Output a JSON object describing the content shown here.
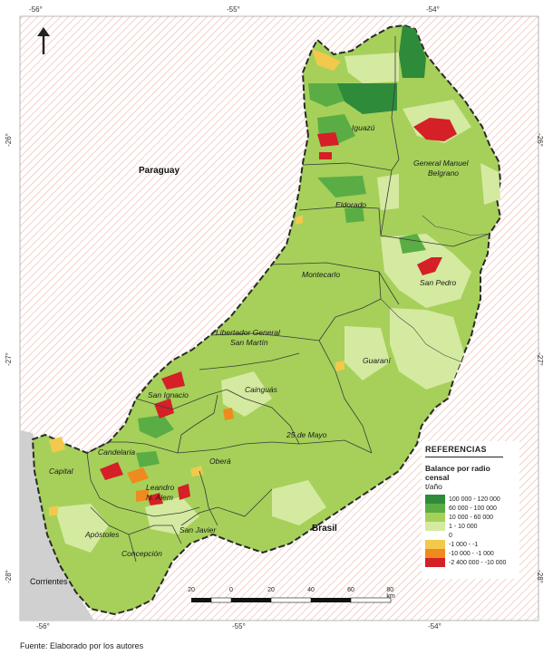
{
  "coords": {
    "top": [
      "-56°",
      "-55°",
      "-54°"
    ],
    "bottom": [
      "-56°",
      "-55°",
      "-54°"
    ],
    "left": [
      "-26°",
      "-27°",
      "-28°"
    ],
    "right": [
      "-26°",
      "-27°",
      "-28°"
    ]
  },
  "countries": {
    "paraguay": "Paraguay",
    "brasil": "Brasil",
    "corrientes": "Corrientes"
  },
  "departments": [
    "Iguazú",
    "General Manuel Belgrano",
    "Eldorado",
    "San Pedro",
    "Montecarlo",
    "Libertador General San Martín",
    "Guaraní",
    "Cainguás",
    "San Ignacio",
    "25 de Mayo",
    "Candelaria",
    "Capital",
    "Oberá",
    "Leandro N. Alem",
    "San Javier",
    "Apóstoles",
    "Concepción"
  ],
  "dept_labels": {
    "iguazu": "Iguazú",
    "belgrano_1": "General Manuel",
    "belgrano_2": "Belgrano",
    "eldorado": "Eldorado",
    "san_pedro": "San Pedro",
    "montecarlo": "Montecarlo",
    "lgsm_1": "Libertador General",
    "lgsm_2": "San Martín",
    "guarani": "Guaraní",
    "cainguas": "Cainguás",
    "san_ignacio": "San Ignacio",
    "veinticinco": "25 de Mayo",
    "candelaria": "Candelaria",
    "capital": "Capital",
    "obera": "Oberá",
    "alem_1": "Leandro",
    "alem_2": "N. Alem",
    "san_javier": "San Javier",
    "apostoles": "Apóstoles",
    "concepcion": "Concepción"
  },
  "legend": {
    "title": "REFERENCIAS",
    "subtitle": "Balance por radio censal",
    "unit": "t/año",
    "items": [
      {
        "label": "100 000 - 120 000",
        "color": "#2e8b3a"
      },
      {
        "label": "60 000 - 100 000",
        "color": "#5aad45"
      },
      {
        "label": "10 000 - 60 000",
        "color": "#a6d05a"
      },
      {
        "label": "1 - 10 000",
        "color": "#d4eaa0"
      },
      {
        "label": "0",
        "color": "#ffffff"
      },
      {
        "label": "-1 000 - -1",
        "color": "#f2c94c"
      },
      {
        "label": "-10 000 - -1 000",
        "color": "#ef8a1f"
      },
      {
        "label": "-2 400 000 - -10 000",
        "color": "#d42026"
      }
    ]
  },
  "scale": {
    "ticks": [
      "20",
      "0",
      "20",
      "40",
      "60",
      "80 km"
    ]
  },
  "source": "Fuente: Elaborado por los autores",
  "colors": {
    "hatch": "#f4c9c2",
    "corrientes_fill": "#d0d0d0",
    "province_base": "#a6d05a",
    "light_green": "#d4eaa0",
    "mid_green": "#5aad45",
    "dark_green": "#2e8b3a",
    "red": "#d42026",
    "orange": "#ef8a1f",
    "yellow": "#f2c94c"
  }
}
